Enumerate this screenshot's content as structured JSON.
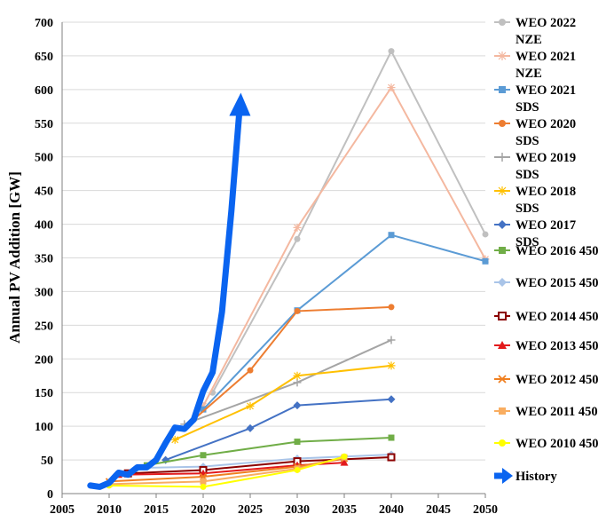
{
  "chart_data": {
    "type": "line",
    "ylabel": "Annual PV Addition [GW]",
    "xlabel": "",
    "xlim": [
      2005,
      2050
    ],
    "ylim": [
      0,
      700
    ],
    "x_ticks": [
      2005,
      2010,
      2015,
      2020,
      2025,
      2030,
      2035,
      2040,
      2045,
      2050
    ],
    "y_ticks": [
      0,
      50,
      100,
      150,
      200,
      250,
      300,
      350,
      400,
      450,
      500,
      550,
      600,
      650,
      700
    ],
    "grid": "horizontal",
    "legend_position": "right",
    "series": [
      {
        "name": "WEO 2022 NZE",
        "legend_lines": [
          "WEO 2022",
          "NZE"
        ],
        "color": "#c0c0c0",
        "marker": "circle",
        "points": [
          [
            2021,
            150
          ],
          [
            2030,
            378
          ],
          [
            2040,
            657
          ],
          [
            2050,
            385
          ]
        ]
      },
      {
        "name": "WEO 2021 NZE",
        "legend_lines": [
          "WEO 2021",
          "NZE"
        ],
        "color": "#f4b8a0",
        "marker": "star",
        "points": [
          [
            2020,
            130
          ],
          [
            2030,
            395
          ],
          [
            2040,
            603
          ],
          [
            2050,
            348
          ]
        ]
      },
      {
        "name": "WEO 2021 SDS",
        "legend_lines": [
          "WEO 2021",
          "SDS"
        ],
        "color": "#5b9bd5",
        "marker": "square",
        "points": [
          [
            2020,
            125
          ],
          [
            2030,
            272
          ],
          [
            2040,
            384
          ],
          [
            2050,
            345
          ]
        ]
      },
      {
        "name": "WEO 2020 SDS",
        "legend_lines": [
          "WEO 2020",
          "SDS"
        ],
        "color": "#ed7d31",
        "marker": "circle",
        "points": [
          [
            2019,
            110
          ],
          [
            2025,
            183
          ],
          [
            2030,
            271
          ],
          [
            2040,
            277
          ]
        ]
      },
      {
        "name": "WEO 2019 SDS",
        "legend_lines": [
          "WEO 2019",
          "SDS"
        ],
        "color": "#a5a5a5",
        "marker": "plus",
        "points": [
          [
            2018,
            103
          ],
          [
            2030,
            165
          ],
          [
            2040,
            228
          ]
        ]
      },
      {
        "name": "WEO 2018 SDS",
        "legend_lines": [
          "WEO 2018",
          "SDS"
        ],
        "color": "#ffc000",
        "marker": "star",
        "points": [
          [
            2017,
            80
          ],
          [
            2025,
            130
          ],
          [
            2030,
            175
          ],
          [
            2040,
            190
          ]
        ]
      },
      {
        "name": "WEO 2017 SDS",
        "legend_lines": [
          "WEO 2017",
          "SDS"
        ],
        "color": "#4472c4",
        "marker": "diamond",
        "points": [
          [
            2016,
            50
          ],
          [
            2025,
            97
          ],
          [
            2030,
            131
          ],
          [
            2040,
            140
          ]
        ]
      },
      {
        "name": "WEO 2016 450",
        "legend_lines": [
          "WEO 2016 450"
        ],
        "color": "#70ad47",
        "marker": "square",
        "points": [
          [
            2014,
            42
          ],
          [
            2020,
            57
          ],
          [
            2030,
            77
          ],
          [
            2040,
            83
          ]
        ]
      },
      {
        "name": "WEO 2015 450",
        "legend_lines": [
          "WEO 2015 450"
        ],
        "color": "#a9c4e8",
        "marker": "diamond",
        "points": [
          [
            2013,
            38
          ],
          [
            2020,
            40
          ],
          [
            2030,
            52
          ],
          [
            2040,
            58
          ]
        ]
      },
      {
        "name": "WEO 2014 450",
        "legend_lines": [
          "WEO 2014 450"
        ],
        "color": "#8b0000",
        "marker": "square-open",
        "points": [
          [
            2012,
            30
          ],
          [
            2020,
            35
          ],
          [
            2030,
            48
          ],
          [
            2040,
            54
          ]
        ]
      },
      {
        "name": "WEO 2013 450",
        "legend_lines": [
          "WEO 2013 450"
        ],
        "color": "#e31a1c",
        "marker": "triangle",
        "points": [
          [
            2011,
            28
          ],
          [
            2020,
            30
          ],
          [
            2030,
            42
          ],
          [
            2035,
            46
          ]
        ]
      },
      {
        "name": "WEO 2012 450",
        "legend_lines": [
          "WEO 2012 450"
        ],
        "color": "#f07f20",
        "marker": "x",
        "points": [
          [
            2010,
            18
          ],
          [
            2020,
            25
          ],
          [
            2030,
            40
          ],
          [
            2035,
            52
          ]
        ]
      },
      {
        "name": "WEO 2011 450",
        "legend_lines": [
          "WEO 2011 450"
        ],
        "color": "#f9ad60",
        "marker": "square",
        "points": [
          [
            2010,
            14
          ],
          [
            2020,
            18
          ],
          [
            2030,
            37
          ],
          [
            2035,
            54
          ]
        ]
      },
      {
        "name": "WEO 2010 450",
        "legend_lines": [
          "WEO 2010 450"
        ],
        "color": "#ffff00",
        "marker": "circle",
        "points": [
          [
            2010,
            12
          ],
          [
            2020,
            10
          ],
          [
            2030,
            35
          ],
          [
            2035,
            55
          ]
        ]
      }
    ],
    "history": {
      "name": "History",
      "color": "#0a64f0",
      "points": [
        [
          2008,
          12
        ],
        [
          2009,
          10
        ],
        [
          2010,
          16
        ],
        [
          2011,
          31
        ],
        [
          2012,
          28
        ],
        [
          2013,
          39
        ],
        [
          2014,
          39
        ],
        [
          2015,
          50
        ],
        [
          2016,
          75
        ],
        [
          2017,
          98
        ],
        [
          2018,
          96
        ],
        [
          2019,
          110
        ],
        [
          2020,
          152
        ],
        [
          2021,
          180
        ],
        [
          2022,
          270
        ],
        [
          2023,
          420
        ],
        [
          2024,
          590
        ]
      ]
    }
  }
}
